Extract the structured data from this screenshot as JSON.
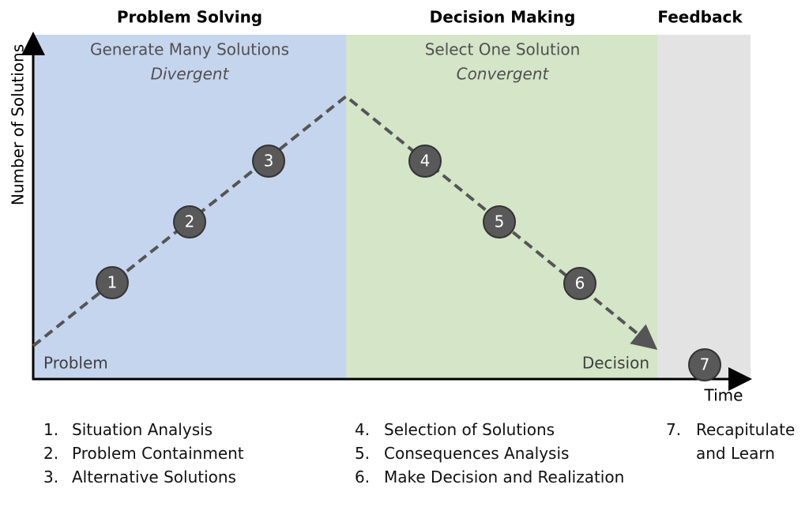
{
  "phases": [
    {
      "title": "Problem Solving",
      "subtitle": "Generate Many Solutions",
      "mode": "Divergent"
    },
    {
      "title": "Decision Making",
      "subtitle": "Select One Solution",
      "mode": "Convergent"
    },
    {
      "title": "Feedback"
    }
  ],
  "axes": {
    "y_label": "Number of Solutions",
    "x_label": "Time"
  },
  "endpoints": {
    "start": "Problem",
    "end": "Decision"
  },
  "nodes": [
    {
      "label": "1"
    },
    {
      "label": "2"
    },
    {
      "label": "3"
    },
    {
      "label": "4"
    },
    {
      "label": "5"
    },
    {
      "label": "6"
    },
    {
      "label": "7"
    }
  ],
  "steps": [
    [
      {
        "number": "1.",
        "text": "Situation Analysis"
      },
      {
        "number": "2.",
        "text": "Problem Containment"
      },
      {
        "number": "3.",
        "text": "Alternative Solutions"
      }
    ],
    [
      {
        "number": "4.",
        "text": "Selection of Solutions"
      },
      {
        "number": "5.",
        "text": "Consequences Analysis"
      },
      {
        "number": "6.",
        "text": "Make Decision and Realization"
      }
    ],
    [
      {
        "number": "7.",
        "text": "Recapitulate and Learn"
      }
    ]
  ]
}
